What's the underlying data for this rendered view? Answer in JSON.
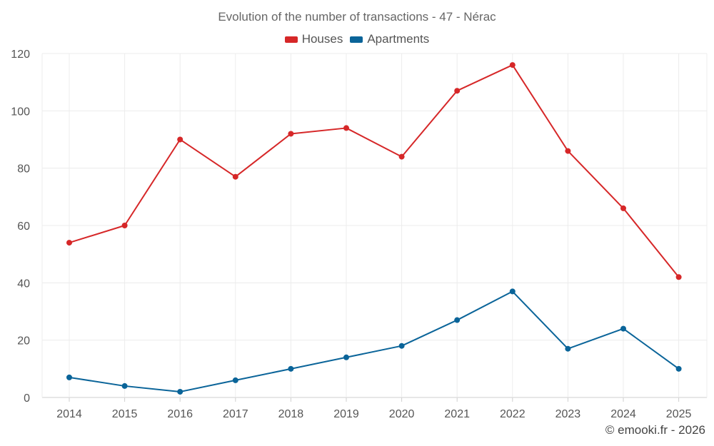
{
  "chart_data": {
    "type": "line",
    "title": "Evolution of the number of transactions - 47 - Nérac",
    "categories": [
      "2014",
      "2015",
      "2016",
      "2017",
      "2018",
      "2019",
      "2020",
      "2021",
      "2022",
      "2023",
      "2024",
      "2025"
    ],
    "series": [
      {
        "name": "Houses",
        "color": "#d62728",
        "values": [
          54,
          60,
          90,
          77,
          92,
          94,
          84,
          107,
          116,
          86,
          66,
          42
        ]
      },
      {
        "name": "Apartments",
        "color": "#0a6499",
        "values": [
          7,
          4,
          2,
          6,
          10,
          14,
          18,
          27,
          37,
          17,
          24,
          10
        ]
      }
    ],
    "xlabel": "",
    "ylabel": "",
    "ylim": [
      0,
      120
    ],
    "yticks": [
      0,
      20,
      40,
      60,
      80,
      100,
      120
    ],
    "grid": true,
    "legend": "top-center"
  },
  "watermark": "© emooki.fr - 2026"
}
